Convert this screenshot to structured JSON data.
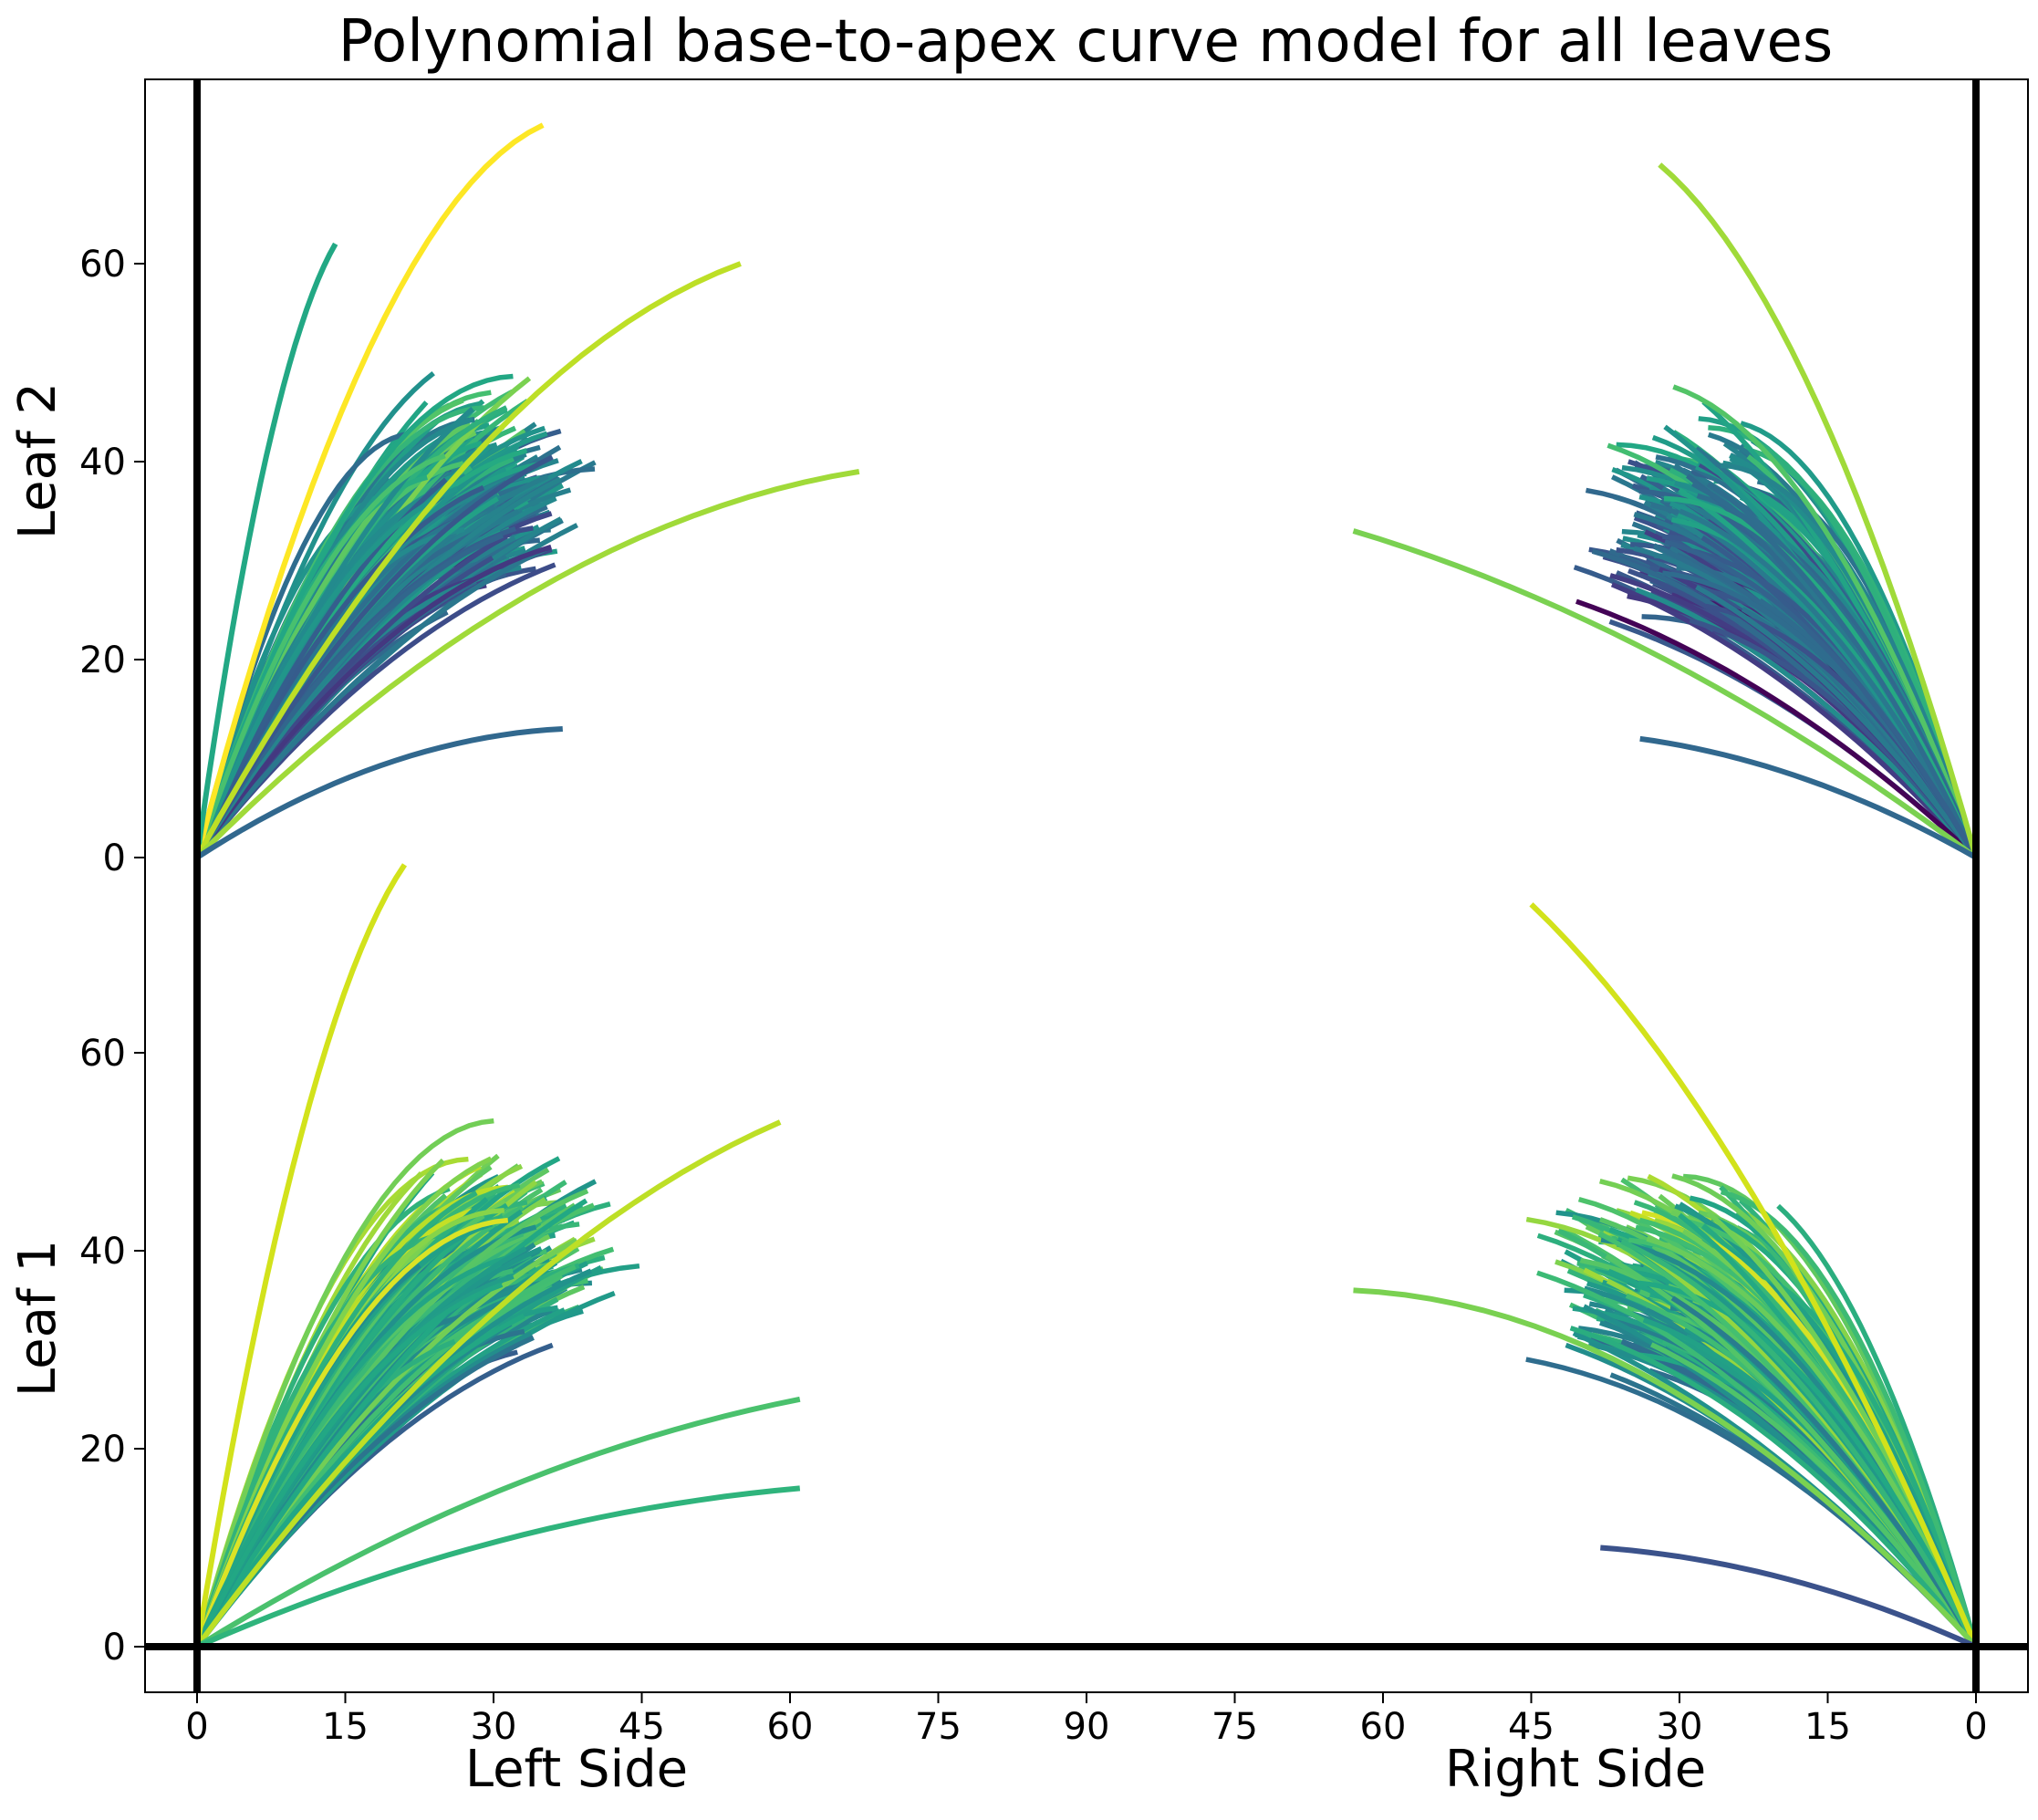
{
  "chart_data": {
    "type": "line",
    "title": "Polynomial base-to-apex curve model for all leaves",
    "x_ticks": [
      0,
      15,
      30,
      45,
      60,
      75,
      90,
      75,
      60,
      45,
      30,
      15,
      0
    ],
    "xlabel_left": "Left Side",
    "xlabel_right": "Right Side",
    "panels": [
      {
        "name": "Leaf 2",
        "y_ticks": [
          0,
          20,
          40,
          60
        ]
      },
      {
        "name": "Leaf 1",
        "y_ticks": [
          0,
          20,
          40,
          60
        ]
      }
    ],
    "x_range_left_side": [
      0,
      90
    ],
    "x_range_right_side": [
      90,
      0
    ],
    "y_range_per_panel": [
      0,
      80
    ],
    "colormap": "viridis",
    "grid": false,
    "legend": "none",
    "curve_model": "y = a*x + b*x^2 (quadratic from base at origin to apex)",
    "representative_curves": [
      {
        "panel": "Leaf 2",
        "side": "left",
        "apex_x": 35,
        "apex_y": 74,
        "color": "#fde725"
      },
      {
        "panel": "Leaf 2",
        "side": "left",
        "apex_x": 14,
        "apex_y": 62,
        "color": "#22a884"
      },
      {
        "panel": "Leaf 2",
        "side": "left",
        "apex_x": 55,
        "apex_y": 60,
        "color": "#bddf26"
      },
      {
        "panel": "Leaf 2",
        "side": "left",
        "apex_x": 67,
        "apex_y": 39,
        "color": "#a0da39"
      },
      {
        "panel": "Leaf 2",
        "side": "left",
        "apex_x": 37,
        "apex_y": 13,
        "color": "#31688e"
      },
      {
        "panel": "Leaf 2",
        "side": "right",
        "apex_x": 32,
        "apex_y": 70,
        "color": "#a0da39"
      },
      {
        "panel": "Leaf 2",
        "side": "right",
        "apex_x": 63,
        "apex_y": 33,
        "color": "#7ad151"
      },
      {
        "panel": "Leaf 2",
        "side": "right",
        "apex_x": 34,
        "apex_y": 12,
        "color": "#31688e"
      },
      {
        "panel": "Leaf 1",
        "side": "left",
        "apex_x": 21,
        "apex_y": 79,
        "color": "#d2e21b"
      },
      {
        "panel": "Leaf 1",
        "side": "left",
        "apex_x": 59,
        "apex_y": 53,
        "color": "#bddf26"
      },
      {
        "panel": "Leaf 1",
        "side": "left",
        "apex_x": 61,
        "apex_y": 25,
        "color": "#4ac16d"
      },
      {
        "panel": "Leaf 1",
        "side": "left",
        "apex_x": 61,
        "apex_y": 16,
        "color": "#2fb47c"
      },
      {
        "panel": "Leaf 1",
        "side": "right",
        "apex_x": 45,
        "apex_y": 75,
        "color": "#d2e21b"
      },
      {
        "panel": "Leaf 1",
        "side": "right",
        "apex_x": 63,
        "apex_y": 36,
        "color": "#7ad151"
      },
      {
        "panel": "Leaf 1",
        "side": "right",
        "apex_x": 38,
        "apex_y": 10,
        "color": "#3b528b"
      }
    ]
  }
}
